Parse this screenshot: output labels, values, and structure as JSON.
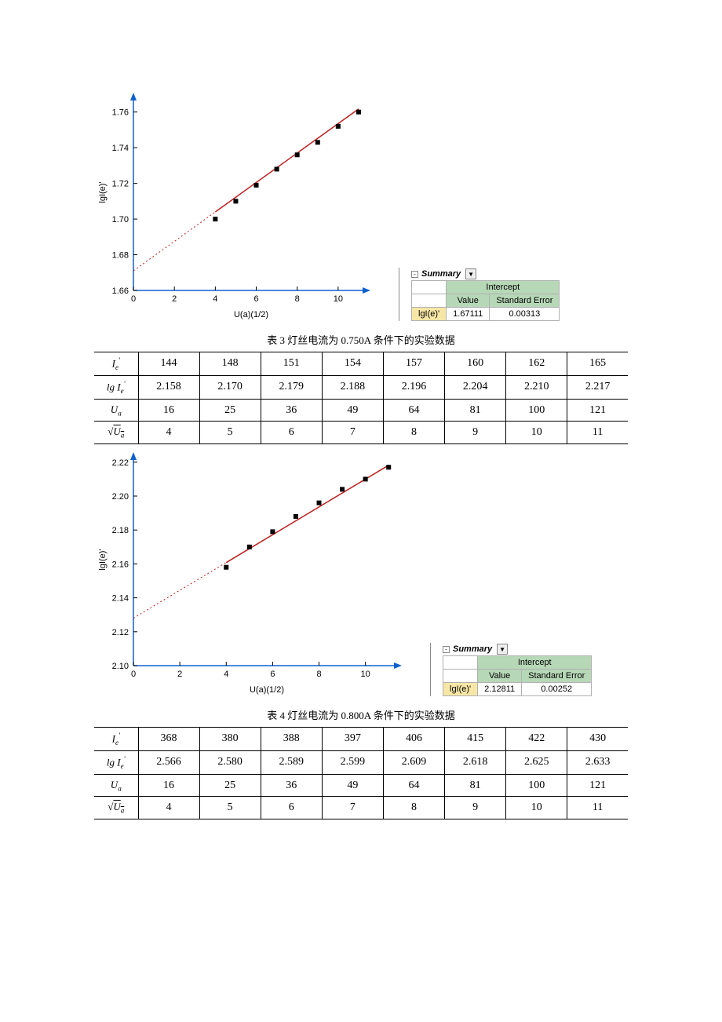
{
  "chart1": {
    "type": "scatter-with-fit",
    "ylabel": "lgI(e)'",
    "xlabel": "U(a)(1/2)",
    "xlim": [
      0,
      11.5
    ],
    "xticks": [
      0,
      2,
      4,
      6,
      8,
      10
    ],
    "ylim": [
      1.66,
      1.77
    ],
    "yticks": [
      1.66,
      1.68,
      1.7,
      1.72,
      1.74,
      1.76
    ],
    "points_x": [
      4,
      5,
      6,
      7,
      8,
      9,
      10,
      11
    ],
    "points_y": [
      1.7,
      1.71,
      1.719,
      1.728,
      1.736,
      1.743,
      1.752,
      1.76
    ],
    "fit_y0": 1.671,
    "fit_slope": 0.00825,
    "marker_color": "#000000",
    "line_color": "#c02020",
    "dash_color": "#c02020",
    "axis_color": "#1060d0",
    "tick_font": 11,
    "summary": {
      "title": "Summary",
      "header": "Intercept",
      "col1": "Value",
      "col2": "Standard Error",
      "rowlabel": "lgI(e)'",
      "value": "1.67111",
      "stderr": "0.00313"
    }
  },
  "caption3": "表 3   灯丝电流为 0.750A 条件下的实验数据",
  "table3": {
    "rowheaders_html": [
      "I<sub>e</sub>'",
      "lg I<sub>e</sub>'",
      "U<sub>a</sub>",
      "√U<sub>a</sub>"
    ],
    "rows": [
      [
        "144",
        "148",
        "151",
        "154",
        "157",
        "160",
        "162",
        "165"
      ],
      [
        "2.158",
        "2.170",
        "2.179",
        "2.188",
        "2.196",
        "2.204",
        "2.210",
        "2.217"
      ],
      [
        "16",
        "25",
        "36",
        "49",
        "64",
        "81",
        "100",
        "121"
      ],
      [
        "4",
        "5",
        "6",
        "7",
        "8",
        "9",
        "10",
        "11"
      ]
    ]
  },
  "chart2": {
    "type": "scatter-with-fit",
    "ylabel": "lgI(e)'",
    "xlabel": "U(a)(1/2)",
    "xlim": [
      0,
      11.5
    ],
    "xticks": [
      0,
      2,
      4,
      6,
      8,
      10
    ],
    "ylim": [
      2.1,
      2.225
    ],
    "yticks": [
      2.1,
      2.12,
      2.14,
      2.16,
      2.18,
      2.2,
      2.22
    ],
    "points_x": [
      4,
      5,
      6,
      7,
      8,
      9,
      10,
      11
    ],
    "points_y": [
      2.158,
      2.17,
      2.179,
      2.188,
      2.196,
      2.204,
      2.21,
      2.217
    ],
    "fit_y0": 2.128,
    "fit_slope": 0.0082,
    "marker_color": "#000000",
    "line_color": "#c02020",
    "dash_color": "#c02020",
    "axis_color": "#1060d0",
    "tick_font": 11,
    "summary": {
      "title": "Summary",
      "header": "Intercept",
      "col1": "Value",
      "col2": "Standard Error",
      "rowlabel": "lgI(e)'",
      "value": "2.12811",
      "stderr": "0.00252"
    }
  },
  "caption4": "表 4   灯丝电流为 0.800A 条件下的实验数据",
  "table4": {
    "rowheaders_html": [
      "I<sub>e</sub>'",
      "lg I<sub>e</sub>'",
      "U<sub>a</sub>",
      "√U<sub>a</sub>"
    ],
    "rows": [
      [
        "368",
        "380",
        "388",
        "397",
        "406",
        "415",
        "422",
        "430"
      ],
      [
        "2.566",
        "2.580",
        "2.589",
        "2.599",
        "2.609",
        "2.618",
        "2.625",
        "2.633"
      ],
      [
        "16",
        "25",
        "36",
        "49",
        "64",
        "81",
        "100",
        "121"
      ],
      [
        "4",
        "5",
        "6",
        "7",
        "8",
        "9",
        "10",
        "11"
      ]
    ]
  }
}
